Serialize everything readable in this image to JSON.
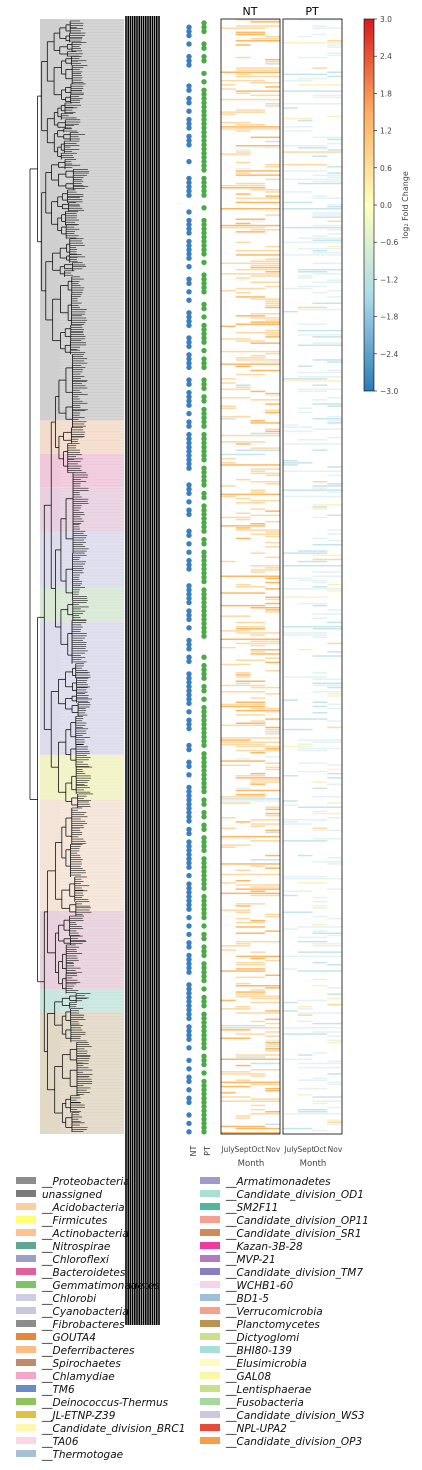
{
  "chart_data": [
    {
      "type": "heatmap",
      "panels": [
        {
          "name": "NT",
          "columns": [
            "July",
            "Sept",
            "Oct",
            "Nov"
          ]
        },
        {
          "name": "PT",
          "columns": [
            "July",
            "Sept",
            "Oct",
            "Nov"
          ]
        }
      ],
      "xlabel": "Month",
      "colorbar": {
        "label": "log₂ Fold Change",
        "range": [
          -3.0,
          3.0
        ],
        "ticks": [
          "3.0",
          "2.4",
          "1.8",
          "1.2",
          "0.6",
          "0.0",
          "−0.6",
          "−1.2",
          "−1.8",
          "−2.4",
          "−3.0"
        ]
      },
      "presence_columns": [
        "NT",
        "PT"
      ],
      "presence_colors": {
        "NT": "#3a7fbf",
        "PT": "#4aaa48"
      }
    }
  ],
  "legend": [
    {
      "label": "__Proteobacteria",
      "color": "#8c8c8c"
    },
    {
      "label": "unassigned",
      "color": "#7a7a7a"
    },
    {
      "label": "__Acidobacteria",
      "color": "#fbcfa0"
    },
    {
      "label": "__Firmicutes",
      "color": "#ffff73"
    },
    {
      "label": "__Actinobacteria",
      "color": "#fcc28f"
    },
    {
      "label": "__Nitrospirae",
      "color": "#5fa88f"
    },
    {
      "label": "__Chloroflexi",
      "color": "#9aa0c8"
    },
    {
      "label": "__Bacteroidetes",
      "color": "#e0629a"
    },
    {
      "label": "__Gemmatimonadetes",
      "color": "#7cc465"
    },
    {
      "label": "__Chlorobi",
      "color": "#cfcde3"
    },
    {
      "label": "__Cyanobacteria",
      "color": "#c9c7df"
    },
    {
      "label": "__Fibrobacteres",
      "color": "#8c8c8c"
    },
    {
      "label": "__GOUTA4",
      "color": "#e6883a"
    },
    {
      "label": "__Deferribacteres",
      "color": "#fbbd84"
    },
    {
      "label": "__Spirochaetes",
      "color": "#c08a6c"
    },
    {
      "label": "__Chlamydiae",
      "color": "#f4a6c8"
    },
    {
      "label": "__TM6",
      "color": "#6a8cc4"
    },
    {
      "label": "__Deinococcus-Thermus",
      "color": "#8fc45c"
    },
    {
      "label": "__JL-ETNP-Z39",
      "color": "#e0c040"
    },
    {
      "label": "__Candidate_division_BRC1",
      "color": "#fdf7b0"
    },
    {
      "label": "__TA06",
      "color": "#fbd7e6"
    },
    {
      "label": "__Thermotogae",
      "color": "#a6c0d6"
    },
    {
      "label": "__Armatimonadetes",
      "color": "#a09ac8"
    },
    {
      "label": "__Candidate_division_OD1",
      "color": "#a8e0d4"
    },
    {
      "label": "__SM2F11",
      "color": "#4fb89a"
    },
    {
      "label": "__Candidate_division_OP11",
      "color": "#f5a090"
    },
    {
      "label": "__Candidate_division_SR1",
      "color": "#cf8a5a"
    },
    {
      "label": "__Kazan-3B-28",
      "color": "#ee3ba0"
    },
    {
      "label": "__MVP-21",
      "color": "#b07cc0"
    },
    {
      "label": "__Candidate_division_TM7",
      "color": "#8a7ec0"
    },
    {
      "label": "__WCHB1-60",
      "color": "#f7d3e6"
    },
    {
      "label": "__BD1-5",
      "color": "#9fbedc"
    },
    {
      "label": "__Verrucomicrobia",
      "color": "#f7a090"
    },
    {
      "label": "__Planctomycetes",
      "color": "#b89450"
    },
    {
      "label": "__Dictyoglomi",
      "color": "#cce08a"
    },
    {
      "label": "__BHI80-139",
      "color": "#a6e0d8"
    },
    {
      "label": "__Elusimicrobia",
      "color": "#fcfcc0"
    },
    {
      "label": "__GAL08",
      "color": "#fbf7a8"
    },
    {
      "label": "__Lentisphaerae",
      "color": "#c6e08c"
    },
    {
      "label": "__Fusobacteria",
      "color": "#a8d8a0"
    },
    {
      "label": "__Candidate_division_WS3",
      "color": "#cfc6e0"
    },
    {
      "label": "__NPL-UPA2",
      "color": "#e84a3a"
    },
    {
      "label": "__Candidate_division_OP3",
      "color": "#f5a048"
    }
  ]
}
